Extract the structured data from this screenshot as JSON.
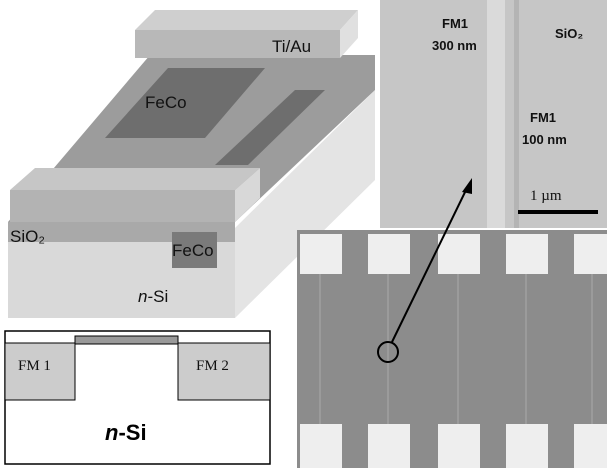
{
  "device_3d": {
    "labels": {
      "top_contact": "Ti/Au",
      "ferromagnet_top": "FeCo",
      "ferromagnet_side": "FeCo",
      "oxide": "SiO₂",
      "substrate_italic": "n",
      "substrate_rest": "-Si"
    }
  },
  "sem_top": {
    "strip_wide_name": "FM1",
    "strip_wide_width": "300 nm",
    "strip_narrow_name": "FM1",
    "strip_narrow_width": "100 nm",
    "oxide": "SiO₂",
    "scale_bar": "1 µm"
  },
  "cross_section": {
    "left": "FM 1",
    "right": "FM 2",
    "substrate_italic": "n",
    "substrate_rest": "-Si"
  }
}
